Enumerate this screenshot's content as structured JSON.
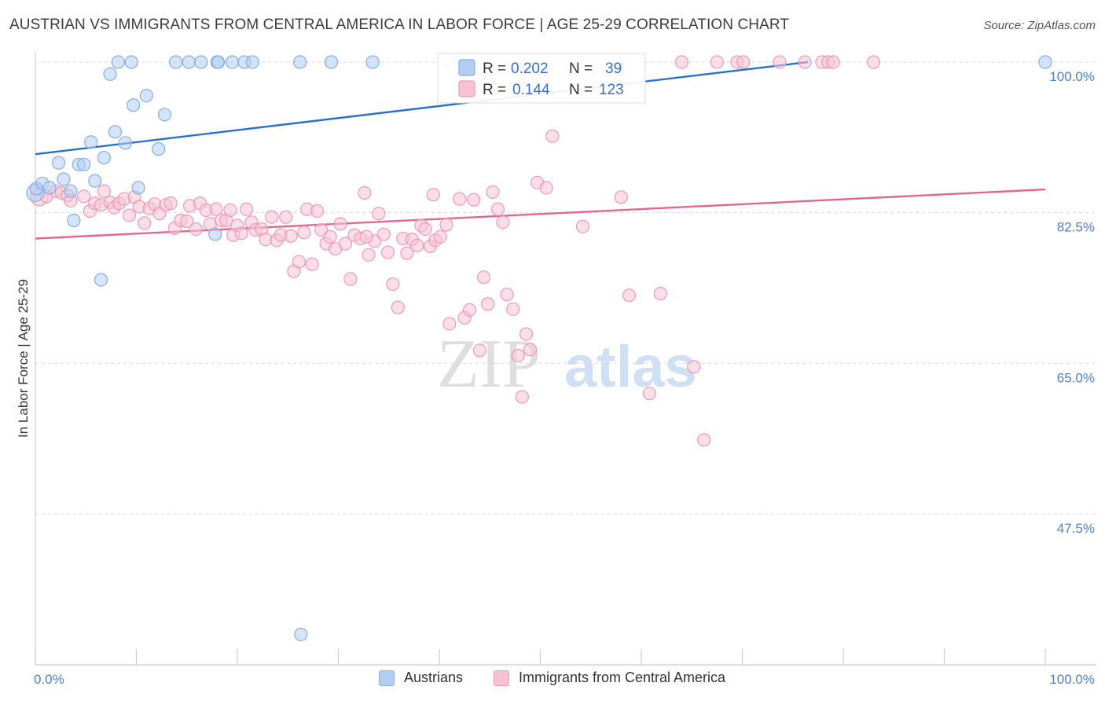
{
  "header": {
    "title": "AUSTRIAN VS IMMIGRANTS FROM CENTRAL AMERICA IN LABOR FORCE | AGE 25-29 CORRELATION CHART",
    "source": "Source: ZipAtlas.com"
  },
  "watermark": {
    "part1": "ZIP",
    "part2": "atlas"
  },
  "legend_top": {
    "rows": [
      {
        "r_label": "R = ",
        "r_value": "0.202",
        "n_label": "N = ",
        "n_value": "39"
      },
      {
        "r_label": "R = ",
        "r_value": "0.144",
        "n_label": "N = ",
        "n_value": "123"
      }
    ]
  },
  "colors": {
    "blue_fill": "#b3cef2",
    "blue_stroke": "#85aee3",
    "blue_line": "#2a6fcc",
    "pink_fill": "#f7c3d3",
    "pink_stroke": "#ec9ab6",
    "pink_line": "#e26690",
    "axis_value": "#4f7fcf",
    "grid": "#d9d9d9"
  },
  "chart_data": {
    "type": "scatter",
    "title": "AUSTRIAN VS IMMIGRANTS FROM CENTRAL AMERICA IN LABOR FORCE | AGE 25-29 CORRELATION CHART",
    "xlabel": "",
    "ylabel": "In Labor Force | Age 25-29",
    "xlim": [
      0,
      100
    ],
    "ylim": [
      32,
      101.5
    ],
    "x_tick_labels": [
      "0.0%",
      "100.0%"
    ],
    "y_ticks": [
      {
        "value": 100,
        "label": "100.0%"
      },
      {
        "value": 82.5,
        "label": "82.5%"
      },
      {
        "value": 65,
        "label": "65.0%"
      },
      {
        "value": 47.5,
        "label": "47.5%"
      }
    ],
    "series": [
      {
        "name": "Austrians",
        "color": "blue",
        "r": 0.202,
        "n": 39,
        "trend": {
          "x": [
            0,
            76.5
          ],
          "y": [
            89.3,
            100
          ]
        },
        "points": [
          [
            0.0,
            84.8
          ],
          [
            0.1,
            85.3
          ],
          [
            0.7,
            85.9
          ],
          [
            1.4,
            85.4
          ],
          [
            2.3,
            88.3
          ],
          [
            2.8,
            86.4
          ],
          [
            3.5,
            85.0
          ],
          [
            3.8,
            81.6
          ],
          [
            4.3,
            88.1
          ],
          [
            4.8,
            88.1
          ],
          [
            5.5,
            90.7
          ],
          [
            5.9,
            86.2
          ],
          [
            6.8,
            88.9
          ],
          [
            7.4,
            98.6
          ],
          [
            7.9,
            91.9
          ],
          [
            8.2,
            100
          ],
          [
            8.9,
            90.6
          ],
          [
            9.5,
            100
          ],
          [
            9.7,
            95.0
          ],
          [
            10.2,
            85.4
          ],
          [
            11.0,
            96.1
          ],
          [
            12.2,
            89.9
          ],
          [
            12.8,
            93.9
          ],
          [
            13.9,
            100
          ],
          [
            15.2,
            100
          ],
          [
            16.4,
            100
          ],
          [
            17.8,
            80.0
          ],
          [
            18.0,
            100
          ],
          [
            18.1,
            100
          ],
          [
            19.5,
            100
          ],
          [
            20.7,
            100
          ],
          [
            21.5,
            100
          ],
          [
            6.5,
            74.7
          ],
          [
            26.2,
            100
          ],
          [
            26.3,
            33.5
          ],
          [
            29.3,
            100
          ],
          [
            33.4,
            100
          ],
          [
            41.2,
            100
          ],
          [
            100,
            100
          ]
        ]
      },
      {
        "name": "Immigrants from Central America",
        "color": "pink",
        "r": 0.144,
        "n": 123,
        "trend": {
          "x": [
            0,
            100
          ],
          "y": [
            79.5,
            85.2
          ]
        },
        "points": [
          [
            0.4,
            84.3
          ],
          [
            1.1,
            84.4
          ],
          [
            2.0,
            85.0
          ],
          [
            2.6,
            84.8
          ],
          [
            3.2,
            84.5
          ],
          [
            3.5,
            83.9
          ],
          [
            4.8,
            84.4
          ],
          [
            5.4,
            82.7
          ],
          [
            5.9,
            83.6
          ],
          [
            6.8,
            85.0
          ],
          [
            6.5,
            83.4
          ],
          [
            7.4,
            83.7
          ],
          [
            7.8,
            83.1
          ],
          [
            8.3,
            83.6
          ],
          [
            8.8,
            84.1
          ],
          [
            9.3,
            82.2
          ],
          [
            9.8,
            84.3
          ],
          [
            10.3,
            83.2
          ],
          [
            10.8,
            81.3
          ],
          [
            11.3,
            83.0
          ],
          [
            11.8,
            83.5
          ],
          [
            12.3,
            82.4
          ],
          [
            12.9,
            83.4
          ],
          [
            13.4,
            83.6
          ],
          [
            13.8,
            80.7
          ],
          [
            14.4,
            81.6
          ],
          [
            15.0,
            81.5
          ],
          [
            15.3,
            83.3
          ],
          [
            15.9,
            80.6
          ],
          [
            16.3,
            83.6
          ],
          [
            16.9,
            82.8
          ],
          [
            17.3,
            81.2
          ],
          [
            17.9,
            82.9
          ],
          [
            18.4,
            81.6
          ],
          [
            18.9,
            81.6
          ],
          [
            19.3,
            82.8
          ],
          [
            19.6,
            79.9
          ],
          [
            20.0,
            81.0
          ],
          [
            20.4,
            80.1
          ],
          [
            20.9,
            82.9
          ],
          [
            21.4,
            81.4
          ],
          [
            21.8,
            80.5
          ],
          [
            22.4,
            80.6
          ],
          [
            22.8,
            79.4
          ],
          [
            23.4,
            82.0
          ],
          [
            23.9,
            79.3
          ],
          [
            24.3,
            79.9
          ],
          [
            24.8,
            82.0
          ],
          [
            25.3,
            79.8
          ],
          [
            25.6,
            75.7
          ],
          [
            26.1,
            76.8
          ],
          [
            26.6,
            80.2
          ],
          [
            26.9,
            82.9
          ],
          [
            27.4,
            76.5
          ],
          [
            27.9,
            82.7
          ],
          [
            28.3,
            80.5
          ],
          [
            28.8,
            78.9
          ],
          [
            29.2,
            79.7
          ],
          [
            29.7,
            78.3
          ],
          [
            30.2,
            81.2
          ],
          [
            30.7,
            78.9
          ],
          [
            31.2,
            74.8
          ],
          [
            31.6,
            79.9
          ],
          [
            32.2,
            79.5
          ],
          [
            32.6,
            84.8
          ],
          [
            33.0,
            77.6
          ],
          [
            33.6,
            79.2
          ],
          [
            34.0,
            82.4
          ],
          [
            34.5,
            80.0
          ],
          [
            34.9,
            77.9
          ],
          [
            35.4,
            74.2
          ],
          [
            35.9,
            71.5
          ],
          [
            36.4,
            79.5
          ],
          [
            36.8,
            77.8
          ],
          [
            37.3,
            79.4
          ],
          [
            37.8,
            78.7
          ],
          [
            38.2,
            81.0
          ],
          [
            38.6,
            80.6
          ],
          [
            39.1,
            78.6
          ],
          [
            39.6,
            79.3
          ],
          [
            40.1,
            79.7
          ],
          [
            39.4,
            84.6
          ],
          [
            40.7,
            81.1
          ],
          [
            41.0,
            69.6
          ],
          [
            42.0,
            84.1
          ],
          [
            42.5,
            70.3
          ],
          [
            43.0,
            71.2
          ],
          [
            43.4,
            84.0
          ],
          [
            44.0,
            66.5
          ],
          [
            44.4,
            75.0
          ],
          [
            44.8,
            71.9
          ],
          [
            45.3,
            84.9
          ],
          [
            45.8,
            82.9
          ],
          [
            46.3,
            81.4
          ],
          [
            46.7,
            73.0
          ],
          [
            47.3,
            71.3
          ],
          [
            47.8,
            65.9
          ],
          [
            48.2,
            61.1
          ],
          [
            48.6,
            68.4
          ],
          [
            49.0,
            66.6
          ],
          [
            49.7,
            86.0
          ],
          [
            50.6,
            85.4
          ],
          [
            51.2,
            91.4
          ],
          [
            54.0,
            100
          ],
          [
            57.6,
            100
          ],
          [
            58.0,
            84.3
          ],
          [
            58.8,
            72.9
          ],
          [
            60.8,
            61.5
          ],
          [
            61.9,
            73.1
          ],
          [
            64.0,
            100
          ],
          [
            65.2,
            64.6
          ],
          [
            66.2,
            56.1
          ],
          [
            67.5,
            100
          ],
          [
            69.5,
            100
          ],
          [
            73.7,
            100
          ],
          [
            77.9,
            100
          ],
          [
            78.5,
            100
          ],
          [
            79.0,
            100
          ],
          [
            83.0,
            100
          ],
          [
            76.2,
            100
          ],
          [
            54.2,
            80.9
          ],
          [
            70.1,
            100
          ],
          [
            32.8,
            79.7
          ]
        ]
      }
    ]
  },
  "legend_bottom": {
    "items": [
      {
        "label": "Austrians"
      },
      {
        "label": "Immigrants from Central America"
      }
    ]
  }
}
